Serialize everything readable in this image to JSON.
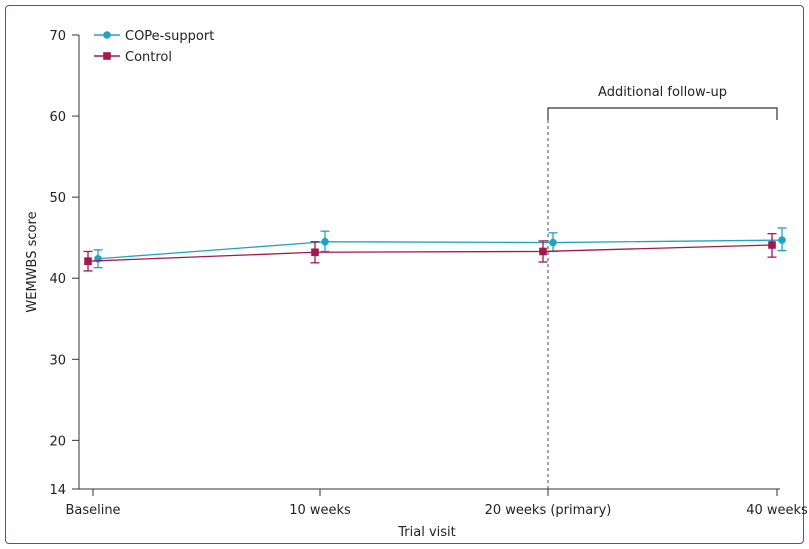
{
  "chart_data": {
    "type": "line",
    "title": "",
    "xlabel": "Trial visit",
    "ylabel": "WEMWBS score",
    "categories": [
      "Baseline",
      "10 weeks",
      "20 weeks (primary)",
      "40 weeks"
    ],
    "y_ticks": [
      14,
      20,
      30,
      40,
      50,
      60,
      70
    ],
    "ylim": [
      14,
      70
    ],
    "grid": false,
    "legend_position": "top-left",
    "series": [
      {
        "name": "COPe-support",
        "color": "#1fa3c4",
        "marker": "circle",
        "values": [
          42.4,
          44.5,
          44.4,
          44.7
        ],
        "ci_lower": [
          41.3,
          43.3,
          43.3,
          43.4
        ],
        "ci_upper": [
          43.5,
          45.8,
          45.6,
          46.2
        ]
      },
      {
        "name": "Control",
        "color": "#a3184f",
        "marker": "square",
        "values": [
          42.1,
          43.2,
          43.3,
          44.1
        ],
        "ci_lower": [
          40.9,
          41.9,
          42.0,
          42.6
        ],
        "ci_upper": [
          43.3,
          44.5,
          44.6,
          45.5
        ]
      }
    ],
    "annotation": {
      "label": "Additional follow-up",
      "from_category": "20 weeks (primary)",
      "to_category": "40 weeks"
    }
  }
}
